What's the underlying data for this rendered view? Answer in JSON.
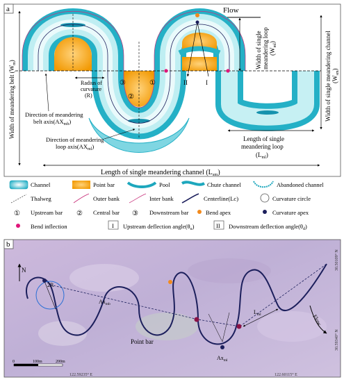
{
  "panel_a": {
    "label": "a",
    "flow": "Flow",
    "width_belt": "Width of meandering belt (W",
    "width_belt_sub": "m",
    "width_belt_end": ")",
    "radius_1": "Radius of",
    "radius_2": "curvature",
    "radius_3": "(R)",
    "dir_belt_1": "Direction of meandering",
    "dir_belt_2": "belt axis(AX",
    "dir_belt_sub": "mb",
    "dir_belt_end": ")",
    "dir_loop_1": "Direction of meandering",
    "dir_loop_2": "loop axis(AX",
    "dir_loop_sub": "ml",
    "dir_loop_end": ")",
    "width_loop_1": "Width of single",
    "width_loop_2": "meandering loop",
    "width_loop_3": "(W",
    "width_loop_sub": "ml",
    "width_loop_end": ")",
    "width_channel_1": "Width of single meandering channel",
    "width_channel_2": "(W",
    "width_channel_sub": "sm",
    "width_channel_end": ")",
    "length_loop_1": "Length of single",
    "length_loop_2": "meandering loop",
    "length_loop_3": "(L",
    "length_loop_sub": "ml",
    "length_loop_end": ")",
    "length_channel": "Length of single meandering channel (L",
    "length_channel_sub": "sm",
    "length_channel_end": ")",
    "num_1": "①",
    "num_2": "②",
    "num_3": "③",
    "roman_1": "I",
    "roman_2": "II"
  },
  "legend": {
    "channel": "Channel",
    "point_bar": "Point bar",
    "pool": "Pool",
    "chute_channel": "Chute channel",
    "abandoned_channel": "Abandoned channel",
    "thalweg": "Thalweg",
    "outer_bank": "Outer bank",
    "inter_bank": "Inter bank",
    "centerline": "Centerline(Lc)",
    "curvature_circle": "Curvature circle",
    "sym_1": "①",
    "upstream_bar": "Upstream bar",
    "sym_2": "②",
    "central_bar": "Central bar",
    "sym_3": "③",
    "downstream_bar": "Downstream bar",
    "bend_apex": "Bend apex",
    "curvature_apex": "Curvature apex",
    "bend_inflection": "Bend inflection",
    "sym_I": "I",
    "upstream_deflection": "Upstream deflection angle(θ",
    "upstream_deflection_sub": "u",
    "upstream_deflection_end": ")",
    "sym_II": "II",
    "downstream_deflection": "Downstream deflection angle(θ",
    "downstream_deflection_sub": "d",
    "downstream_deflection_end": ")"
  },
  "panel_b": {
    "label": "b",
    "north": "N",
    "radius": "2R",
    "ax_mb": "Ax",
    "ax_mb_sub": "mb",
    "l_ml": "L",
    "l_ml_sub": "ml",
    "flow": "Flow",
    "point_bar": "Point bar",
    "ax_ml": "Ax",
    "ax_ml_sub": "ml",
    "scale_0": "0",
    "scale_1": "100m",
    "scale_2": "200m",
    "coord_bottom_1": "122.59235° E",
    "coord_bottom_2": "122.60115° E",
    "coord_right_1": "30.50109° N",
    "coord_right_2": "30.59340° N"
  },
  "colors": {
    "channel_outer": "#27b4c8",
    "channel_inner": "#d6f3f5",
    "point_bar": "#f5a20b",
    "point_bar_light": "#ffd98a",
    "bank_outer": "#c8307a",
    "centerline": "#1c1f5c",
    "inflection": "#e0167a",
    "bend_apex": "#f28a1c",
    "curvature_apex": "#1c1f5c",
    "satellite": "#c9b8d9"
  }
}
